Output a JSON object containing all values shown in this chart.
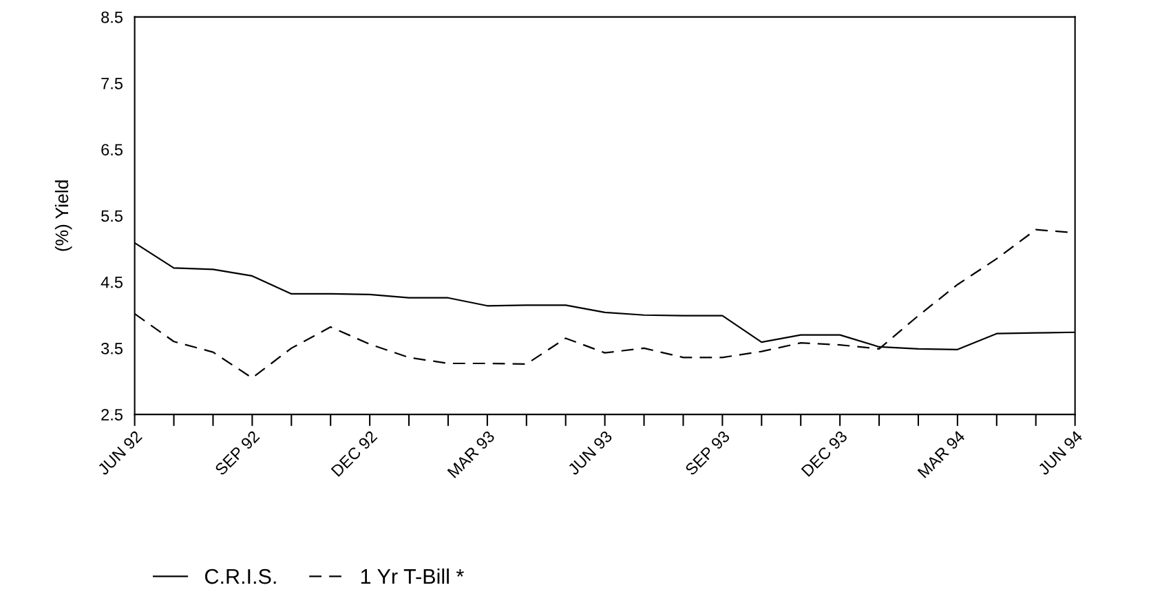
{
  "chart_data": {
    "type": "line",
    "ylabel": "(%) Yield",
    "categories": [
      "JUN 92",
      null,
      null,
      "SEP 92",
      null,
      null,
      "DEC 92",
      null,
      null,
      "MAR 93",
      null,
      null,
      "JUN 93",
      null,
      null,
      "SEP 93",
      null,
      null,
      "DEC 93",
      null,
      null,
      "MAR 94",
      null,
      null,
      "JUN 94"
    ],
    "series": [
      {
        "name": "C.R.I.S.",
        "color": "#000000",
        "line_style": "solid",
        "values": [
          5.09,
          4.71,
          4.69,
          4.59,
          4.32,
          4.32,
          4.31,
          4.26,
          4.26,
          4.14,
          4.15,
          4.15,
          4.04,
          4.0,
          3.99,
          3.99,
          3.59,
          3.7,
          3.7,
          3.52,
          3.49,
          3.48,
          3.72,
          3.73,
          3.74
        ]
      },
      {
        "name": "1 Yr T-Bill *",
        "color": "#000000",
        "line_style": "dashed",
        "values": [
          4.02,
          3.6,
          3.44,
          3.05,
          3.5,
          3.82,
          3.56,
          3.36,
          3.27,
          3.27,
          3.26,
          3.65,
          3.43,
          3.5,
          3.36,
          3.36,
          3.45,
          3.58,
          3.55,
          3.49,
          3.99,
          4.46,
          4.85,
          5.29,
          5.24
        ]
      }
    ],
    "ylim": [
      2.5,
      8.5
    ],
    "yticks": [
      2.5,
      3.5,
      4.5,
      5.5,
      6.5,
      7.5,
      8.5
    ],
    "grid": false,
    "legend": "bottom left",
    "marker": "none"
  }
}
